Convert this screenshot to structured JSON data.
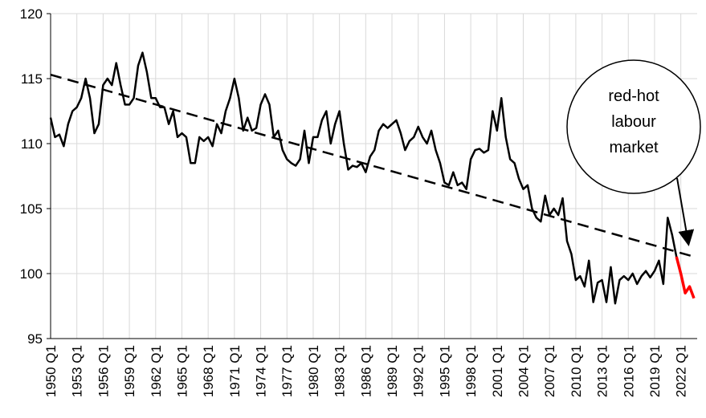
{
  "chart_data": {
    "type": "line",
    "categories": [
      "1950 Q1",
      null,
      null,
      null,
      null,
      null,
      "1953 Q1",
      null,
      null,
      null,
      null,
      null,
      "1956 Q1",
      null,
      null,
      null,
      null,
      null,
      "1959 Q1",
      null,
      null,
      null,
      null,
      null,
      "1962 Q1",
      null,
      null,
      null,
      null,
      null,
      "1965 Q1",
      null,
      null,
      null,
      null,
      null,
      "1968 Q1",
      null,
      null,
      null,
      null,
      null,
      "1971 Q1",
      null,
      null,
      null,
      null,
      null,
      "1974 Q1",
      null,
      null,
      null,
      null,
      null,
      "1977 Q1",
      null,
      null,
      null,
      null,
      null,
      "1980 Q1",
      null,
      null,
      null,
      null,
      null,
      "1983 Q1",
      null,
      null,
      null,
      null,
      null,
      "1986 Q1",
      null,
      null,
      null,
      null,
      null,
      "1989 Q1",
      null,
      null,
      null,
      null,
      null,
      "1992 Q1",
      null,
      null,
      null,
      null,
      null,
      "1995 Q1",
      null,
      null,
      null,
      null,
      null,
      "1998 Q1",
      null,
      null,
      null,
      null,
      null,
      "2001 Q1",
      null,
      null,
      null,
      null,
      null,
      "2004 Q1",
      null,
      null,
      null,
      null,
      null,
      "2007 Q1",
      null,
      null,
      null,
      null,
      null,
      "2010 Q1",
      null,
      null,
      null,
      null,
      null,
      "2013 Q1",
      null,
      null,
      null,
      null,
      null,
      "2016 Q1",
      null,
      null,
      null,
      null,
      null,
      "2019 Q1",
      null,
      null,
      null,
      null,
      null,
      "2022 Q1",
      null,
      null,
      null
    ],
    "series": [
      {
        "color": "#000000",
        "values": [
          112,
          110.5,
          110.7,
          109.8,
          111.5,
          112.5,
          112.8,
          113.5,
          115,
          113.5,
          110.8,
          111.5,
          114.5,
          115,
          114.5,
          116.2,
          114.5,
          113,
          113,
          113.5,
          116,
          117,
          115.5,
          113.5,
          113.5,
          112.8,
          112.8,
          111.5,
          112.5,
          110.5,
          110.8,
          110.5,
          108.5,
          108.5,
          110.5,
          110.2,
          110.5,
          109.8,
          111.5,
          110.8,
          112.5,
          113.5,
          115,
          113.5,
          111,
          112,
          111,
          111.2,
          113,
          113.8,
          113,
          110.5,
          111,
          109.5,
          108.8,
          108.5,
          108.3,
          108.8,
          111,
          108.5,
          110.5,
          110.5,
          111.8,
          112.5,
          110,
          111.5,
          112.5,
          110,
          108,
          108.3,
          108.2,
          108.5,
          107.8,
          109,
          109.5,
          111,
          111.5,
          111.2,
          111.5,
          111.8,
          110.8,
          109.5,
          110.2,
          110.5,
          111.3,
          110.5,
          110,
          111,
          109.5,
          108.5,
          107,
          106.8,
          107.8,
          106.8,
          107,
          106.5,
          108.8,
          109.5,
          109.6,
          109.3,
          109.5,
          112.5,
          111,
          113.5,
          110.5,
          108.8,
          108.5,
          107.3,
          106.5,
          106.8,
          105,
          104.3,
          104,
          106,
          104.5,
          105,
          104.5,
          105.8,
          102.5,
          101.5,
          99.5,
          99.8,
          99,
          101,
          97.8,
          99.3,
          99.5,
          97.8,
          100.5,
          97.7,
          99.5,
          99.8,
          99.5,
          100,
          99.2,
          99.8,
          100.2,
          99.7,
          100.2,
          101,
          99.2,
          104.3,
          103,
          101.3,
          null,
          null,
          null,
          null
        ]
      },
      {
        "color": "#ff0000",
        "values": [
          null,
          null,
          null,
          null,
          null,
          null,
          null,
          null,
          null,
          null,
          null,
          null,
          null,
          null,
          null,
          null,
          null,
          null,
          null,
          null,
          null,
          null,
          null,
          null,
          null,
          null,
          null,
          null,
          null,
          null,
          null,
          null,
          null,
          null,
          null,
          null,
          null,
          null,
          null,
          null,
          null,
          null,
          null,
          null,
          null,
          null,
          null,
          null,
          null,
          null,
          null,
          null,
          null,
          null,
          null,
          null,
          null,
          null,
          null,
          null,
          null,
          null,
          null,
          null,
          null,
          null,
          null,
          null,
          null,
          null,
          null,
          null,
          null,
          null,
          null,
          null,
          null,
          null,
          null,
          null,
          null,
          null,
          null,
          null,
          null,
          null,
          null,
          null,
          null,
          null,
          null,
          null,
          null,
          null,
          null,
          null,
          null,
          null,
          null,
          null,
          null,
          null,
          null,
          null,
          null,
          null,
          null,
          null,
          null,
          null,
          null,
          null,
          null,
          null,
          null,
          null,
          null,
          null,
          null,
          null,
          null,
          null,
          null,
          null,
          null,
          null,
          null,
          null,
          null,
          null,
          null,
          null,
          null,
          null,
          null,
          null,
          null,
          null,
          null,
          null,
          null,
          null,
          null,
          101.3,
          100,
          98.5,
          99,
          98.1
        ]
      }
    ],
    "trend": {
      "color": "#000000",
      "dashed": true,
      "values": [
        115.3,
        101.3
      ]
    },
    "ylim": [
      95,
      120
    ],
    "yticks": [
      95,
      100,
      105,
      110,
      115,
      120
    ],
    "grid": true,
    "annotation": {
      "lines": [
        "red-hot",
        "labour",
        "market"
      ]
    }
  }
}
